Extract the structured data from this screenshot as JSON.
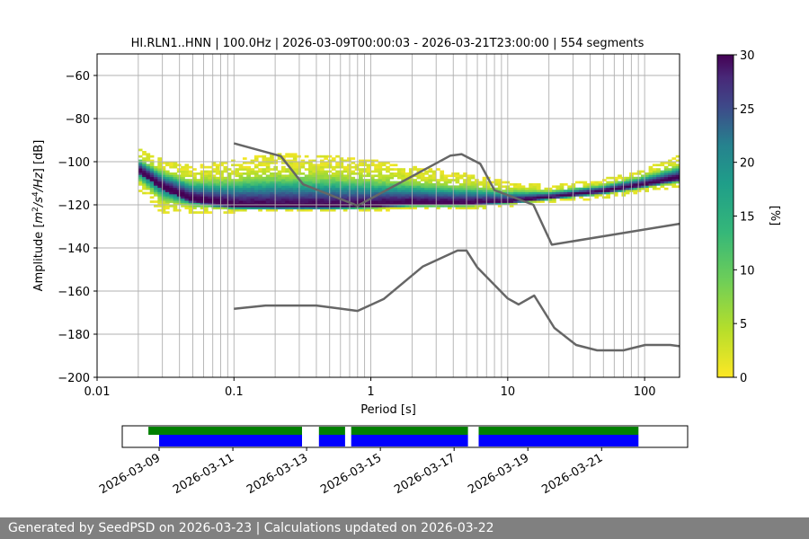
{
  "footer": {
    "text": "Generated by SeedPSD on 2026-03-23 | Calculations updated on 2026-03-22"
  },
  "chart_data": [
    {
      "type": "heatmap",
      "title": "HI.RLN1..HNN | 100.0Hz | 2026-03-09T00:00:03 - 2026-03-21T23:00:00 | 554 segments",
      "xlabel": "Period [s]",
      "ylabel": "Amplitude [m²/s⁴/Hz] [dB]",
      "x_scale": "log",
      "xlim": [
        0.01,
        180
      ],
      "ylim": [
        -200,
        -50
      ],
      "x_ticks": [
        0.01,
        0.1,
        1,
        10,
        100
      ],
      "x_tick_labels": [
        "0.01",
        "0.1",
        "1",
        "10",
        "100"
      ],
      "y_ticks": [
        -200,
        -180,
        -160,
        -140,
        -120,
        -100,
        -80,
        -60
      ],
      "y_tick_labels": [
        "−200",
        "−180",
        "−160",
        "−140",
        "−120",
        "−100",
        "−80",
        "−60"
      ],
      "grid": true,
      "colorbar": {
        "label": "[%]",
        "range": [
          0,
          30
        ],
        "ticks": [
          0,
          5,
          10,
          15,
          20,
          25,
          30
        ],
        "tick_labels": [
          "0",
          "5",
          "10",
          "15",
          "20",
          "25",
          "30"
        ],
        "colormap": "viridis"
      },
      "psd_density": {
        "period_range": [
          0.02,
          180
        ],
        "mode_db": [
          [
            0.02,
            -104
          ],
          [
            0.03,
            -112
          ],
          [
            0.05,
            -118
          ],
          [
            0.1,
            -121
          ],
          [
            0.2,
            -121.5
          ],
          [
            0.5,
            -121.5
          ],
          [
            1,
            -121
          ],
          [
            2,
            -120
          ],
          [
            5,
            -120
          ],
          [
            10,
            -119
          ],
          [
            20,
            -117
          ],
          [
            50,
            -114
          ],
          [
            100,
            -111
          ],
          [
            180,
            -108
          ]
        ],
        "upper_db": [
          [
            0.02,
            -95
          ],
          [
            0.03,
            -100
          ],
          [
            0.05,
            -103
          ],
          [
            0.1,
            -100
          ],
          [
            0.2,
            -97
          ],
          [
            0.5,
            -98
          ],
          [
            1,
            -100
          ],
          [
            2,
            -103
          ],
          [
            5,
            -106
          ],
          [
            10,
            -110
          ],
          [
            20,
            -112
          ],
          [
            50,
            -109
          ],
          [
            100,
            -104
          ],
          [
            180,
            -98
          ]
        ],
        "lower_db": [
          [
            0.02,
            -113
          ],
          [
            0.03,
            -124
          ],
          [
            0.05,
            -124
          ],
          [
            0.1,
            -123.5
          ],
          [
            0.2,
            -123
          ],
          [
            0.5,
            -123
          ],
          [
            1,
            -123
          ],
          [
            2,
            -122
          ],
          [
            5,
            -122
          ],
          [
            10,
            -121
          ],
          [
            20,
            -119
          ],
          [
            50,
            -117
          ],
          [
            100,
            -114
          ],
          [
            180,
            -112
          ]
        ]
      },
      "series": [
        {
          "name": "",
          "color": "#666666",
          "points": [
            [
              0.1,
              -91.5
            ],
            [
              0.22,
              -97.4
            ],
            [
              0.32,
              -110.5
            ],
            [
              0.8,
              -120.4
            ],
            [
              3.8,
              -97.2
            ],
            [
              4.6,
              -96.5
            ],
            [
              6.3,
              -101
            ],
            [
              8,
              -113.2
            ],
            [
              15.4,
              -120
            ],
            [
              21,
              -138.5
            ],
            [
              180,
              -128.8
            ]
          ]
        },
        {
          "name": "",
          "color": "#666666",
          "points": [
            [
              0.1,
              -168.2
            ],
            [
              0.17,
              -166.7
            ],
            [
              0.4,
              -166.7
            ],
            [
              0.8,
              -169.2
            ],
            [
              1.24,
              -163.7
            ],
            [
              2.4,
              -148.6
            ],
            [
              4.3,
              -141.2
            ],
            [
              5.0,
              -141.2
            ],
            [
              6.0,
              -149.1
            ],
            [
              10,
              -163.4
            ],
            [
              12,
              -166.2
            ],
            [
              15.6,
              -162.1
            ],
            [
              21.9,
              -177.1
            ],
            [
              31.6,
              -185
            ],
            [
              45,
              -187.5
            ],
            [
              70,
              -187.5
            ],
            [
              101,
              -185
            ],
            [
              154,
              -185
            ],
            [
              180,
              -185.6
            ]
          ]
        }
      ]
    },
    {
      "type": "bar",
      "title": "",
      "x_tick_labels": [
        "2026-03-09",
        "2026-03-11",
        "2026-03-13",
        "2026-03-15",
        "2026-03-17",
        "2026-03-19",
        "2026-03-21"
      ],
      "x_ticks": [
        "2026-03-09T00",
        "2026-03-11T00",
        "2026-03-13T00",
        "2026-03-15T00",
        "2026-03-17T00",
        "2026-03-19T00",
        "2026-03-21T00"
      ],
      "xlim": [
        "2026-03-08T00",
        "2026-03-23T08"
      ],
      "series": [
        {
          "name": "",
          "color": "#008000",
          "segments": [
            [
              "2026-03-08T17",
              "2026-03-12T21"
            ],
            [
              "2026-03-13T08",
              "2026-03-14T01"
            ],
            [
              "2026-03-14T05",
              "2026-03-17T09"
            ],
            [
              "2026-03-17T16",
              "2026-03-22T00"
            ]
          ]
        },
        {
          "name": "",
          "color": "#0000ff",
          "segments": [
            [
              "2026-03-09T00",
              "2026-03-12T21"
            ],
            [
              "2026-03-13T08",
              "2026-03-14T01"
            ],
            [
              "2026-03-14T05",
              "2026-03-17T09"
            ],
            [
              "2026-03-17T16",
              "2026-03-22T00"
            ]
          ]
        }
      ]
    }
  ]
}
